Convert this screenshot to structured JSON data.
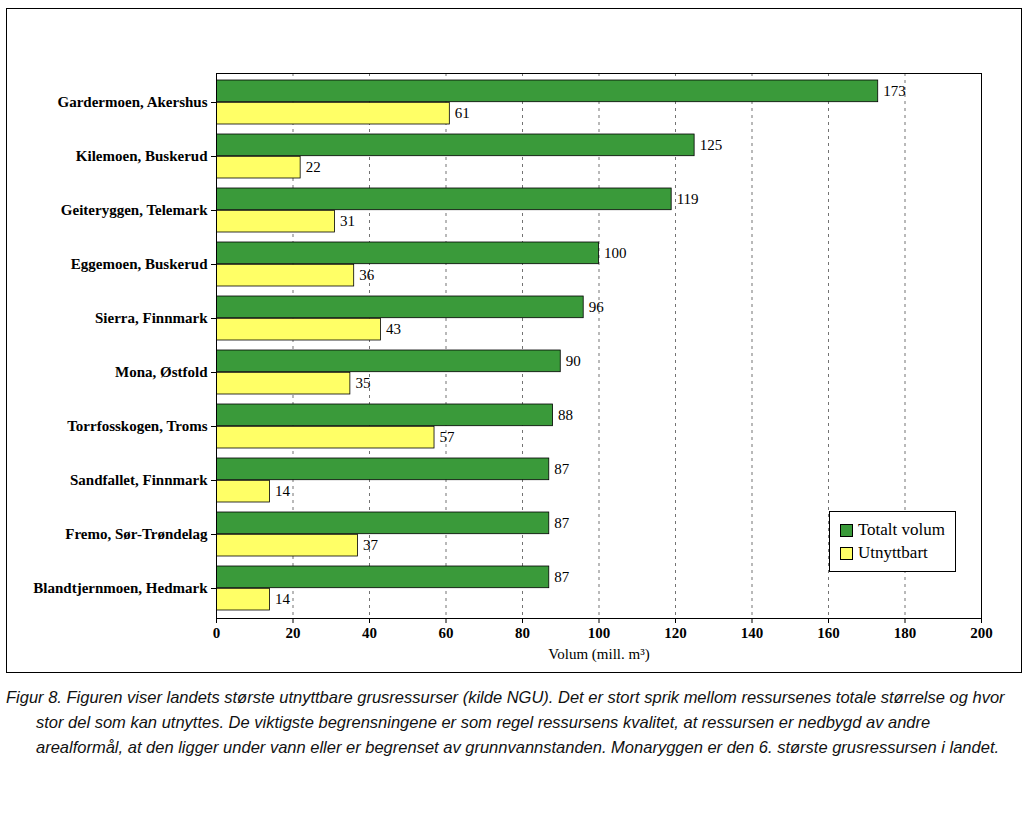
{
  "chart_data": {
    "type": "bar",
    "orientation": "horizontal",
    "categories": [
      "Gardermoen, Akershus",
      "Kilemoen, Buskerud",
      "Geiteryggen, Telemark",
      "Eggemoen, Buskerud",
      "Sierra, Finnmark",
      "Mona, Østfold",
      "Torrfosskogen, Troms",
      "Sandfallet, Finnmark",
      "Fremo, Sør-Trøndelag",
      "Blandtjernmoen, Hedmark"
    ],
    "series": [
      {
        "name": "Totalt volum",
        "color": "#3a9a3a",
        "values": [
          173,
          125,
          119,
          100,
          96,
          90,
          88,
          87,
          87,
          87
        ]
      },
      {
        "name": "Utnyttbart",
        "color": "#ffff66",
        "values": [
          61,
          22,
          31,
          36,
          43,
          35,
          57,
          14,
          37,
          14
        ]
      }
    ],
    "x_label": "Volum (mill. m³)",
    "xlim": [
      0,
      200
    ],
    "xticks": [
      0,
      20,
      40,
      60,
      80,
      100,
      120,
      140,
      160,
      180,
      200
    ],
    "grid": true,
    "legend": "bottom-right",
    "data_labels": true,
    "caption": "Figur 8.  Figuren viser landets største utnyttbare grusressurser (kilde NGU).  Det er stort sprik mellom ressursenes totale størrelse og hvor stor del som kan utnyttes.  De viktigste begrensningene er som regel ressursens kvalitet, at ressursen er nedbygd av andre arealformål, at den ligger under vann eller er begrenset av grunnvannstanden.  Monaryggen er den 6. største grusressursen i landet."
  }
}
